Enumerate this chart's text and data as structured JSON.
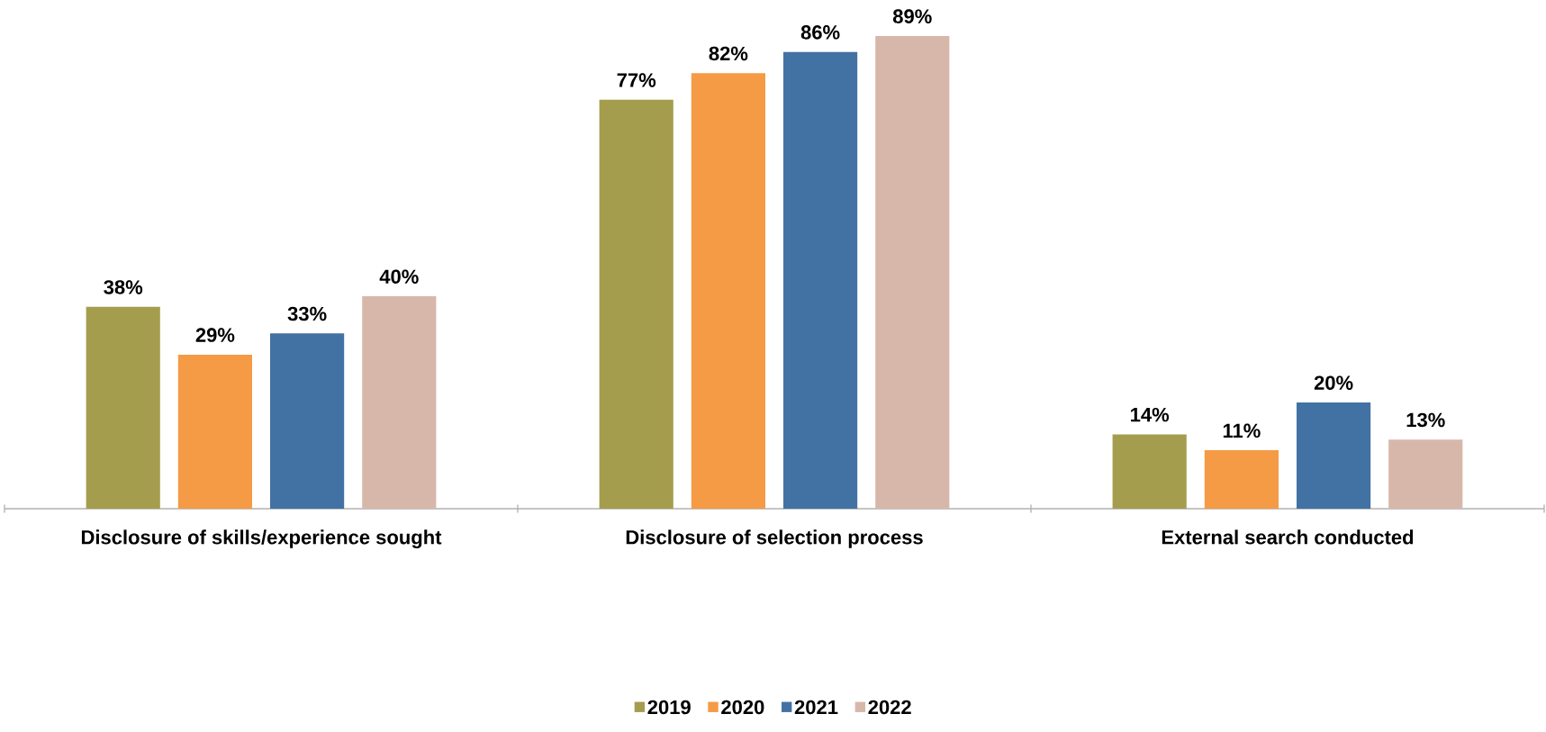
{
  "chart_data": {
    "type": "bar",
    "categories": [
      "Disclosure of skills/experience sought",
      "Disclosure of selection process",
      "External search conducted"
    ],
    "series": [
      {
        "name": "2019",
        "color": "#a59d4e",
        "values": [
          38,
          77,
          14
        ],
        "value_labels": [
          "38%",
          "77%",
          "14%"
        ]
      },
      {
        "name": "2020",
        "color": "#f59a45",
        "values": [
          29,
          82,
          11
        ],
        "value_labels": [
          "29%",
          "82%",
          "11%"
        ]
      },
      {
        "name": "2021",
        "color": "#4272a4",
        "values": [
          33,
          86,
          20
        ],
        "value_labels": [
          "33%",
          "86%",
          "20%"
        ]
      },
      {
        "name": "2022",
        "color": "#d8b7ab",
        "values": [
          40,
          89,
          13
        ],
        "value_labels": [
          "40%",
          "89%",
          "13%"
        ]
      }
    ],
    "legend": "bottom"
  }
}
